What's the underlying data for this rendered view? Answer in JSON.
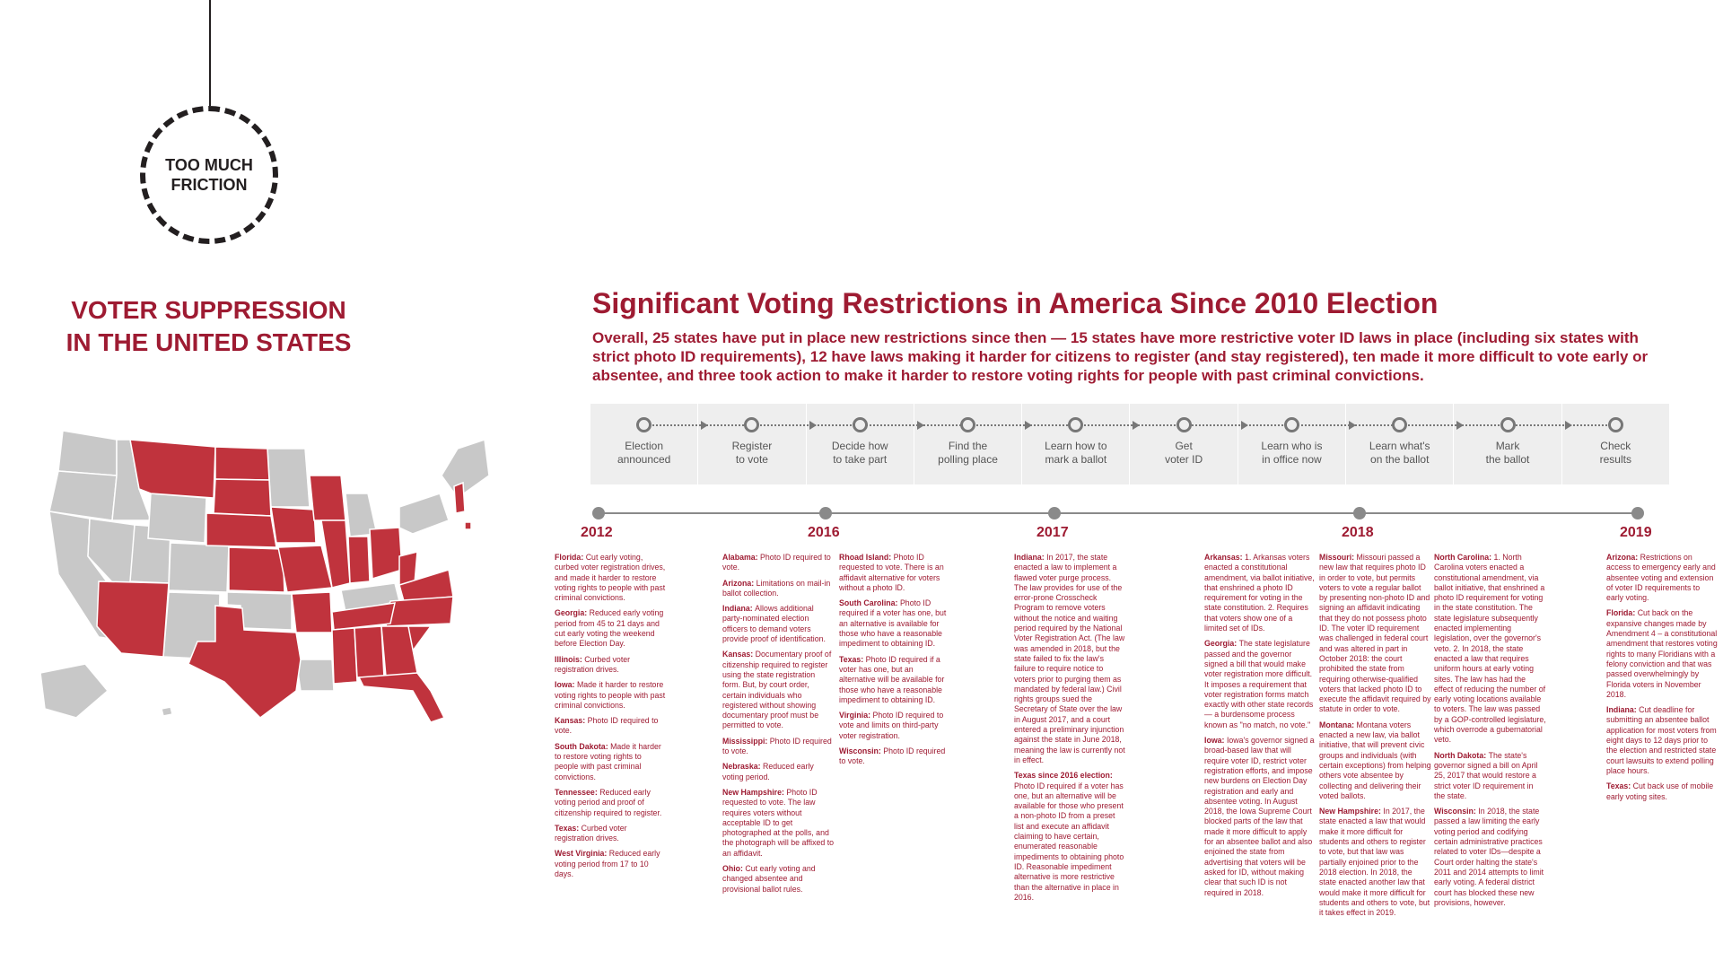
{
  "badge": {
    "text": "TOO MUCH\nFRICTION"
  },
  "left_title": "VOTER SUPPRESSION\nIN THE UNITED STATES",
  "main": {
    "title": "Significant Voting Restrictions in America Since 2010 Election",
    "subtitle": "Overall, 25 states have put in place new restrictions since then — 15 states have more restrictive voter ID laws in place (including six states with strict photo ID requirements), 12 have laws making it harder for citizens to register (and stay registered), ten made it more difficult to vote early or absentee, and three took action to make it harder to restore voting rights for people with past criminal convictions."
  },
  "colors": {
    "accent": "#9e1b32",
    "map_gray": "#c8c8c8",
    "steps_bg": "#eeeeee"
  },
  "steps": [
    "Election\nannounced",
    "Register\nto vote",
    "Decide how\nto take part",
    "Find the\npolling place",
    "Learn how to\nmark a ballot",
    "Get\nvoter ID",
    "Learn who is\nin office now",
    "Learn what's\non the ballot",
    "Mark\nthe ballot",
    "Check\nresults"
  ],
  "timeline": {
    "years": [
      "2012",
      "2016",
      "2017",
      "2018",
      "2019"
    ],
    "columns": [
      [
        {
          "state": "Florida:",
          "text": "Cut early voting, curbed voter registration drives, and made it harder to restore voting rights to people with past criminal convictions."
        },
        {
          "state": "Georgia:",
          "text": "Reduced early voting period from 45 to 21 days and cut early voting the weekend before Election Day."
        },
        {
          "state": "Illinois:",
          "text": "Curbed voter registration drives."
        },
        {
          "state": "Iowa:",
          "text": "Made it harder to restore voting rights to people with past criminal convictions."
        },
        {
          "state": "Kansas:",
          "text": "Photo ID required to vote."
        },
        {
          "state": "South Dakota:",
          "text": "Made it harder to restore voting rights to people with past criminal convictions."
        },
        {
          "state": "Tennessee:",
          "text": "Reduced early voting period and proof of citizenship required to register."
        },
        {
          "state": "Texas:",
          "text": "Curbed voter registration drives."
        },
        {
          "state": "West Virginia:",
          "text": "Reduced early voting period from 17 to 10 days."
        }
      ],
      [
        {
          "state": "Alabama:",
          "text": "Photo ID required to vote."
        },
        {
          "state": "Arizona:",
          "text": "Limitations on mail-in ballot collection."
        },
        {
          "state": "Indiana:",
          "text": "Allows additional party-nominated election officers to demand voters provide proof of identification."
        },
        {
          "state": "Kansas:",
          "text": "Documentary proof of citizenship required to register using the state registration form. But, by court order, certain individuals who registered without showing documentary proof must be permitted to vote."
        },
        {
          "state": "Mississippi:",
          "text": "Photo ID required to vote."
        },
        {
          "state": "Nebraska:",
          "text": "Reduced early voting period."
        },
        {
          "state": "New Hampshire:",
          "text": "Photo ID requested to vote. The law requires voters without acceptable ID to get photographed at the polls, and the photograph will be affixed to an affidavit."
        },
        {
          "state": "Ohio:",
          "text": "Cut early voting and changed absentee and provisional ballot rules."
        }
      ],
      [
        {
          "state": "Rhoad Island:",
          "text": "Photo ID requested to vote. There is an affidavit alternative for voters without a photo ID."
        },
        {
          "state": "South Carolina:",
          "text": "Photo ID required if a voter has one, but an alternative is available for those who have a reasonable impediment to obtaining ID."
        },
        {
          "state": "Texas:",
          "text": "Photo ID required if a voter has one, but an alternative will be available for those who have a reasonable impediment to obtaining ID."
        },
        {
          "state": "Virginia:",
          "text": "Photo ID required to vote and limits on third-party voter registration."
        },
        {
          "state": "Wisconsin:",
          "text": "Photo ID required to vote."
        }
      ],
      [
        {
          "state": "Indiana:",
          "text": "In 2017, the state enacted a law to implement a flawed voter purge process. The law provides for use of the error-prone Crosscheck Program to remove voters without the notice and waiting period required by the National Voter Registration Act. (The law was amended in 2018, but the state failed to fix the law's failure to require notice to voters prior to purging them as mandated by federal law.) Civil rights groups sued the Secretary of State over the law in August 2017, and a court entered a preliminary injunction against the state in June 2018, meaning the law is currently not in effect."
        },
        {
          "state": "Texas since 2016 election:",
          "text": "Photo ID required if a voter has one, but an alternative will be available for those who present a non-photo ID from a preset list and execute an affidavit claiming to have certain, enumerated reasonable impediments to obtaining photo ID. Reasonable impediment alternative is more restrictive than the alternative in place in 2016."
        }
      ],
      [
        {
          "state": "Arkansas:",
          "text": "1. Arkansas voters enacted a constitutional amendment, via ballot initiative, that enshrined a photo ID requirement for voting in the state constitution.       2. Requires that voters show one of a limited set of IDs."
        },
        {
          "state": "Georgia:",
          "text": "The state legislature passed and the governor signed a bill that would make voter registration more difficult. It imposes a requirement that voter registration forms match exactly with other state records — a burdensome process known as \"no match, no vote.\""
        },
        {
          "state": "Iowa:",
          "text": "Iowa's governor signed a broad-based law that will require voter ID, restrict voter registration efforts, and impose new burdens on Election Day registration and early and absentee voting. In August 2018, the Iowa Supreme Court blocked parts of the law that made it more difficult to apply for an absentee ballot and also enjoined the state from advertising that voters will be asked for ID, without making clear that such ID is not required in 2018."
        }
      ],
      [
        {
          "state": "Missouri:",
          "text": "Missouri passed a new law that requires photo ID in order to vote, but permits voters to vote a regular ballot by presenting non-photo ID and signing an affidavit indicating that they do not possess photo ID. The voter ID requirement was challenged in federal court and was altered in part in October 2018: the court prohibited the state from requiring otherwise-qualified voters that lacked photo ID to execute the affidavit required by statute in order to vote."
        },
        {
          "state": "Montana:",
          "text": "Montana voters enacted a new law, via ballot initiative, that will prevent civic groups and individuals (with certain exceptions) from helping others vote absentee by collecting and delivering their voted ballots."
        },
        {
          "state": "New Hampshire:",
          "text": "In 2017, the state enacted a law that would make it more difficult for students and others to register to vote, but that law was partially enjoined prior to the 2018 election. In 2018, the state enacted another law that would make it more difficult for students and others to vote, but it takes effect in 2019."
        }
      ],
      [
        {
          "state": "North Carolina:",
          "text": "1. North Carolina voters enacted a constitutional amendment, via ballot initiative, that enshrined a photo ID requirement for voting in the state constitution. The state legislature subsequently enacted implementing legislation, over the governor's veto.  2. In 2018, the state enacted a law that requires uniform hours at early voting sites. The law has had the effect of reducing the number of early voting locations available to voters. The law was passed by a GOP-controlled legislature, which overrode a gubernatorial veto."
        },
        {
          "state": "North Dakota:",
          "text": "The state's governor signed a bill on April 25, 2017 that would restore a strict voter ID requirement in the state."
        },
        {
          "state": "Wisconsin:",
          "text": "In 2018, the state passed a law limiting the early voting period and codifying certain administrative practices related to voter IDs—despite a Court order halting the state's 2011 and 2014 attempts to limit early voting. A federal district court has blocked these new provisions, however."
        }
      ],
      [
        {
          "state": "Arizona:",
          "text": "Restrictions on access to emergency early and absentee voting and extension of voter ID requirements to early voting."
        },
        {
          "state": "Florida:",
          "text": "Cut back on the expansive changes made by Amendment 4 – a constitutional amendment that restores voting rights to many Floridians with a felony conviction and that was passed overwhelmingly by Florida voters in November 2018."
        },
        {
          "state": "Indiana:",
          "text": "Cut deadline for submitting an absentee ballot application for most voters from eight days to 12 days prior to the election and restricted state court lawsuits to extend polling place hours."
        },
        {
          "state": "Texas:",
          "text": "Cut back use of mobile early voting sites."
        }
      ]
    ]
  }
}
